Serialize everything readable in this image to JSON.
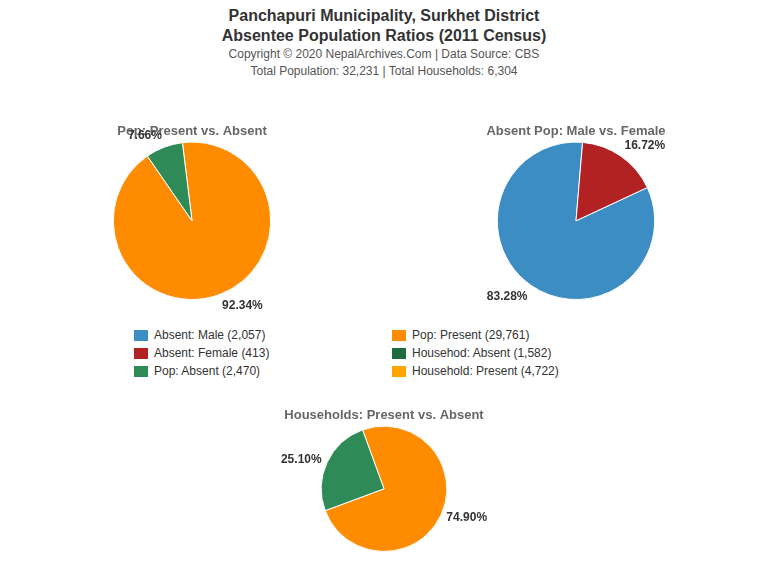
{
  "title": [
    "Panchapuri Municipality, Surkhet District",
    "Absentee Population Ratios (2011 Census)"
  ],
  "subtitle": [
    "Copyright © 2020 NepalArchives.Com | Data Source: CBS",
    "Total Population: 32,231 | Total Households: 6,304"
  ],
  "legend_entries": [
    {
      "name": "Absent: Male (2,057)",
      "color": "#3B8DC4"
    },
    {
      "name": "Absent: Female (413)",
      "color": "#B22222"
    },
    {
      "name": "Pop: Absent (2,470)",
      "color": "#2E8B57"
    },
    {
      "name": "Pop: Present (29,761)",
      "color": "#FF8C00"
    },
    {
      "name": "Househod: Absent (1,582)",
      "color": "#1E6B3C"
    },
    {
      "name": "Household: Present (4,722)",
      "color": "#FFA500"
    }
  ],
  "chart_data": [
    {
      "type": "pie",
      "title": "Pop: Present vs. Absent",
      "values": [
        92.34,
        7.66
      ],
      "value_labels": [
        "92.34%",
        "7.66%"
      ],
      "colors": [
        "#FF8C00",
        "#2E8B57"
      ],
      "data_labels": true
    },
    {
      "type": "pie",
      "title": "Absent Pop: Male vs. Female",
      "values": [
        83.28,
        16.72
      ],
      "value_labels": [
        "83.28%",
        "16.72%"
      ],
      "colors": [
        "#3B8DC4",
        "#B22222"
      ],
      "data_labels": true
    },
    {
      "type": "pie",
      "title": "Households: Present vs. Absent",
      "values": [
        74.9,
        25.1
      ],
      "value_labels": [
        "74.90%",
        "25.10%"
      ],
      "colors": [
        "#FF8C00",
        "#2E8B57"
      ],
      "data_labels": true
    }
  ]
}
